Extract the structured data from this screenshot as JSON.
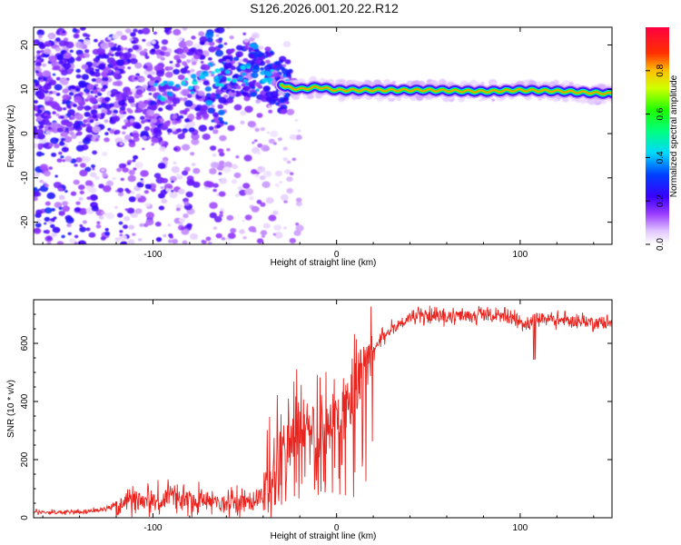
{
  "chart_data": [
    {
      "type": "heatmap",
      "title": "S126.2026.001.20.22.R12",
      "xlabel": "Height of straight line (km)",
      "ylabel": "Frequency (Hz)",
      "xlim": [
        -165,
        150
      ],
      "ylim": [
        -25,
        24
      ],
      "xticks": [
        -100,
        0,
        100
      ],
      "yticks": [
        20,
        10,
        0,
        -10,
        -20
      ],
      "ridge": {
        "description": "Dominant spectral peak vs height",
        "x": [
          -165,
          -140,
          -120,
          -100,
          -80,
          -60,
          -45,
          -35,
          -28,
          -20,
          -10,
          0,
          20,
          50,
          80,
          100,
          120,
          150
        ],
        "freq": [
          10,
          9,
          9.5,
          9,
          11,
          13,
          14,
          13,
          10.5,
          10,
          10.5,
          9.8,
          9.8,
          9.8,
          9.5,
          9.8,
          9.6,
          9
        ]
      },
      "colorbar": {
        "label": "Normalized spectral amplitude",
        "range": [
          0,
          1
        ],
        "ticks": [
          "0.0",
          "0.2",
          "0.4",
          "0.6",
          "0.8"
        ]
      }
    },
    {
      "type": "line",
      "title": "",
      "xlabel": "Height of straight line (km)",
      "ylabel": "SNR (10 * v/v)",
      "xlim": [
        -165,
        150
      ],
      "ylim": [
        0,
        750
      ],
      "xticks": [
        -100,
        0,
        100
      ],
      "yticks": [
        0,
        200,
        400,
        600
      ],
      "series": [
        {
          "name": "SNR",
          "color": "#e8241f",
          "x": [
            -165,
            -150,
            -130,
            -120,
            -110,
            -100,
            -90,
            -80,
            -70,
            -60,
            -50,
            -45,
            -40,
            -35,
            -30,
            -25,
            -20,
            -15,
            -10,
            -5,
            0,
            5,
            10,
            15,
            20,
            25,
            30,
            40,
            50,
            60,
            70,
            80,
            90,
            100,
            104,
            108,
            120,
            135,
            150
          ],
          "values": [
            20,
            18,
            25,
            45,
            65,
            55,
            70,
            60,
            60,
            50,
            55,
            60,
            90,
            160,
            260,
            300,
            320,
            320,
            310,
            330,
            350,
            380,
            430,
            520,
            570,
            620,
            650,
            690,
            695,
            690,
            695,
            700,
            690,
            680,
            660,
            690,
            680,
            675,
            670
          ]
        }
      ]
    }
  ]
}
